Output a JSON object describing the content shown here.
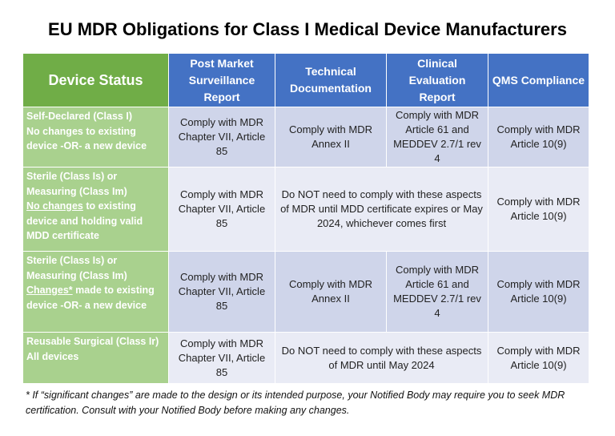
{
  "title": "EU MDR Obligations for Class I Medical Device Manufacturers",
  "colors": {
    "header_green": "#70ad47",
    "header_blue": "#4472c4",
    "status_green": "#a9d18e",
    "row_dark": "#cfd5ea",
    "row_light": "#e9ebf5"
  },
  "headers": [
    "Device Status",
    "Post Market Surveillance Report",
    "Technical Documentation",
    "Clinical Evaluation Report",
    "QMS Compliance"
  ],
  "rows": [
    {
      "status": {
        "line1": "Self-Declared (Class I)",
        "underlined": "",
        "rest": "No changes to existing device -OR- a new device"
      },
      "pms": "Comply with MDR Chapter VII, Article 85",
      "td": "Comply with MDR Annex II",
      "cer": "Comply with MDR Article 61 and MEDDEV 2.7/1 rev 4",
      "qms": "Comply with MDR Article 10(9)"
    },
    {
      "status": {
        "line1": "Sterile (Class Is) or Measuring (Class Im)",
        "underlined": "No changes",
        "rest": " to existing device and holding valid MDD certificate"
      },
      "pms": "Comply with MDR Chapter VII, Article 85",
      "merged": "Do NOT need to comply with these aspects of MDR until MDD certificate expires or May 2024, whichever comes first",
      "qms": "Comply with MDR Article 10(9)"
    },
    {
      "status": {
        "line1": "Sterile (Class Is) or Measuring (Class Im)",
        "underlined": "Changes*",
        "rest": " made to existing device -OR- a new device"
      },
      "pms": "Comply with MDR Chapter VII, Article 85",
      "td": "Comply with MDR Annex II",
      "cer": "Comply with MDR Article 61 and MEDDEV 2.7/1 rev 4",
      "qms": "Comply with MDR Article 10(9)"
    },
    {
      "status": {
        "line1": "Reusable Surgical (Class Ir)",
        "underlined": "",
        "rest": "All devices"
      },
      "pms": "Comply with MDR Chapter VII, Article 85",
      "merged": "Do NOT need to comply with these aspects of MDR until May 2024",
      "qms": "Comply with MDR Article 10(9)"
    }
  ],
  "footnote": "* If “significant changes” are made to the design or its intended purpose, your Notified Body may require you to seek MDR certification. Consult with your Notified Body before making any changes."
}
